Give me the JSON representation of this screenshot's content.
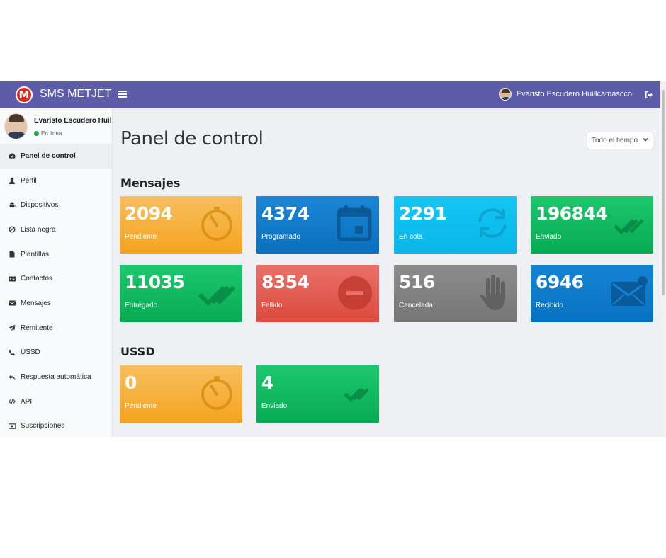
{
  "header": {
    "logo_letter": "M",
    "brand": "SMS METJET",
    "user_name": "Evaristo Escudero Huillcamascco"
  },
  "sidebar": {
    "user_name": "Evaristo Escudero Huillcam",
    "status": "En línea",
    "items": [
      {
        "label": "Panel de control",
        "icon": "dashboard-icon"
      },
      {
        "label": "Perfil",
        "icon": "user-icon"
      },
      {
        "label": "Dispositivos",
        "icon": "android-icon"
      },
      {
        "label": "Lista negra",
        "icon": "ban-icon"
      },
      {
        "label": "Plantillas",
        "icon": "file-icon"
      },
      {
        "label": "Contactos",
        "icon": "address-card-icon"
      },
      {
        "label": "Mensajes",
        "icon": "envelope-icon"
      },
      {
        "label": "Remitente",
        "icon": "paper-plane-icon"
      },
      {
        "label": "USSD",
        "icon": "phone-icon"
      },
      {
        "label": "Respuesta automática",
        "icon": "reply-icon"
      },
      {
        "label": "API",
        "icon": "code-icon"
      },
      {
        "label": "Suscripciones",
        "icon": "money-icon"
      }
    ]
  },
  "main": {
    "title": "Panel de control",
    "range_select": "Todo el tiempo",
    "mensajes": {
      "title": "Mensajes",
      "tiles": [
        {
          "value": "2094",
          "label": "Pendiente",
          "icon": "stopwatch-icon",
          "color": "orange"
        },
        {
          "value": "4374",
          "label": "Programado",
          "icon": "calendar-icon",
          "color": "blue"
        },
        {
          "value": "2291",
          "label": "En cola",
          "icon": "sync-icon",
          "color": "cyan"
        },
        {
          "value": "196844",
          "label": "Enviado",
          "icon": "check-icon",
          "color": "green"
        },
        {
          "value": "11035",
          "label": "Entregado",
          "icon": "double-check-icon",
          "color": "green"
        },
        {
          "value": "8354",
          "label": "Fallido",
          "icon": "minus-circle-icon",
          "color": "red"
        },
        {
          "value": "516",
          "label": "Cancelada",
          "icon": "hand-icon",
          "color": "gray"
        },
        {
          "value": "6946",
          "label": "Recibido",
          "icon": "envelope-icon",
          "color": "blue"
        }
      ]
    },
    "ussd": {
      "title": "USSD",
      "tiles": [
        {
          "value": "0",
          "label": "Pendiente",
          "icon": "stopwatch-icon",
          "color": "orange"
        },
        {
          "value": "4",
          "label": "Enviado",
          "icon": "double-check-icon",
          "color": "green"
        }
      ]
    }
  }
}
